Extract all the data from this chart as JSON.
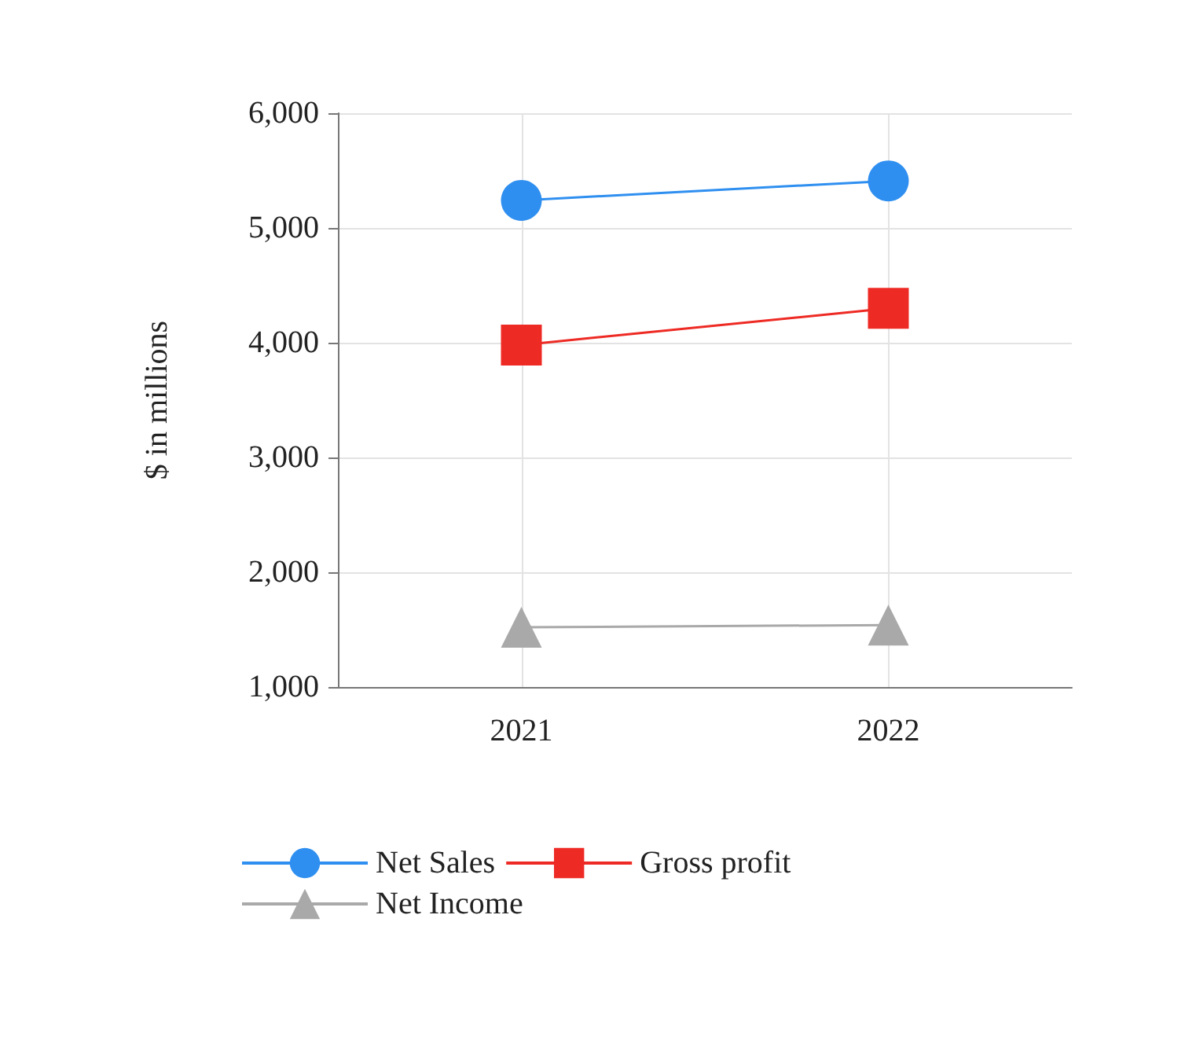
{
  "chart_data": {
    "type": "line",
    "ylabel": "$ in millions",
    "categories": [
      "2021",
      "2022"
    ],
    "series": [
      {
        "name": "Net Sales",
        "color": "#2f8ff0",
        "marker": "circle",
        "values": [
          5240,
          5410
        ]
      },
      {
        "name": "Gross profit",
        "color": "#ee2a24",
        "marker": "square",
        "values": [
          3980,
          4300
        ]
      },
      {
        "name": "Net Income",
        "color": "#a9a9a9",
        "marker": "triangle",
        "values": [
          1520,
          1540
        ]
      }
    ],
    "ylim": [
      1000,
      6000
    ],
    "yticks": [
      {
        "value": 1000,
        "label": "1,000"
      },
      {
        "value": 2000,
        "label": "2,000"
      },
      {
        "value": 3000,
        "label": "3,000"
      },
      {
        "value": 4000,
        "label": "4,000"
      },
      {
        "value": 5000,
        "label": "5,000"
      },
      {
        "value": 6000,
        "label": "6,000"
      }
    ],
    "grid": true,
    "legend": "bottom"
  }
}
